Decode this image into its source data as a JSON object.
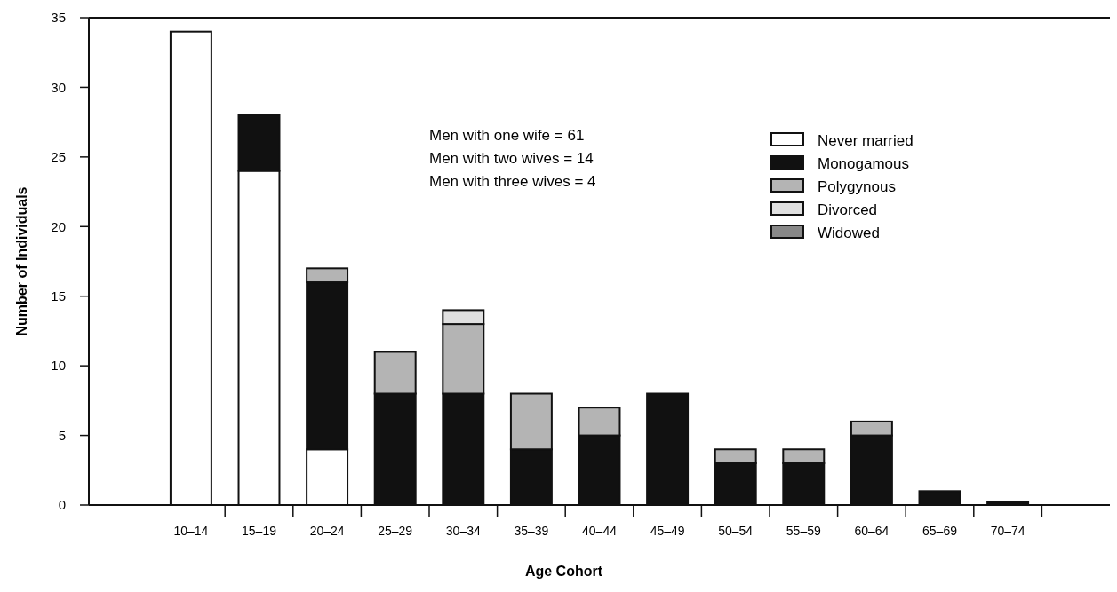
{
  "chart_data": {
    "type": "bar",
    "stacked": true,
    "xlabel": "Age Cohort",
    "ylabel": "Number of Individuals",
    "categories": [
      null,
      "10–14",
      "15–19",
      "20–24",
      "25–29",
      "30–34",
      "35–39",
      "40–44",
      "45–49",
      "50–54",
      "55–59",
      "60–64",
      "65–69",
      "70–74",
      null
    ],
    "series": [
      {
        "name": "Never married",
        "color": "#ffffff",
        "values": [
          null,
          34,
          24,
          4,
          0,
          0,
          0,
          0,
          0,
          0,
          0,
          0,
          0,
          0,
          null
        ]
      },
      {
        "name": "Monogamous",
        "color": "#111111",
        "values": [
          null,
          0,
          4,
          12,
          8,
          8,
          4,
          5,
          8,
          3,
          3,
          5,
          1,
          0.2,
          null
        ]
      },
      {
        "name": "Polygynous",
        "color": "#b4b4b4",
        "values": [
          null,
          0,
          0,
          1,
          3,
          5,
          4,
          2,
          0,
          1,
          1,
          1,
          0,
          0,
          null
        ]
      },
      {
        "name": "Divorced",
        "color": "#e0e0e0",
        "values": [
          null,
          0,
          0,
          0,
          0,
          1,
          0,
          0,
          0,
          0,
          0,
          0,
          0,
          0,
          null
        ]
      },
      {
        "name": "Widowed",
        "color": "#888888",
        "values": [
          null,
          0,
          0,
          0,
          0,
          0,
          0,
          0,
          0,
          0,
          0,
          0,
          0,
          0,
          null
        ]
      }
    ],
    "ylim": [
      0,
      35
    ],
    "yticks": [
      0,
      5,
      10,
      15,
      20,
      25,
      30,
      35
    ],
    "grid": false,
    "legend": "top right",
    "annotations": [
      "Men with one wife = 61",
      "Men with two wives = 14",
      "Men with three wives = 4"
    ]
  }
}
